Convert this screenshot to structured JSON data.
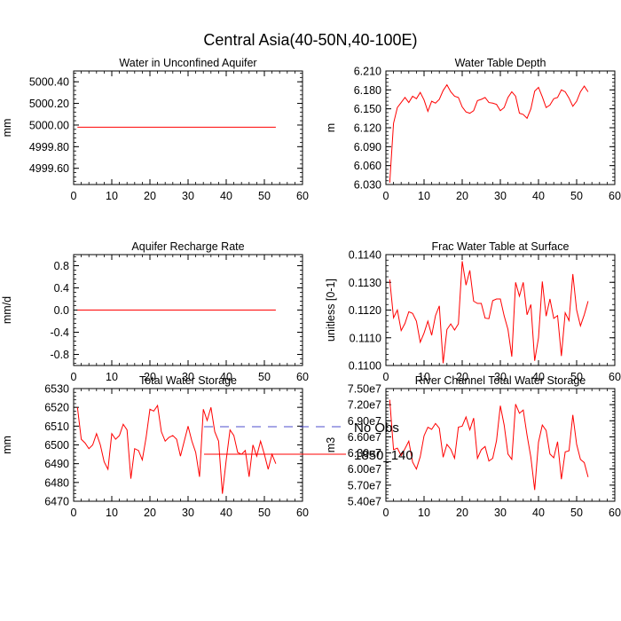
{
  "figure": {
    "title": "Central Asia(40-50N,40-100E)"
  },
  "legend": {
    "items": [
      {
        "label": "No Obs",
        "color": "#4d4dcc",
        "dash": "dashed"
      },
      {
        "label": "1850_140",
        "color": "#ff0000",
        "dash": "solid"
      }
    ]
  },
  "chart_data": [
    {
      "type": "line",
      "title": "Water in Unconfined Aquifer",
      "xlabel": "",
      "ylabel": "mm",
      "xlim": [
        0,
        60
      ],
      "ylim": [
        4999.45,
        5000.5
      ],
      "xticks": [
        0,
        10,
        20,
        30,
        40,
        50,
        60
      ],
      "xtick_labels": [
        "0",
        "10",
        "20",
        "30",
        "40",
        "50",
        "60"
      ],
      "yticks": [
        4999.6,
        4999.8,
        5000.0,
        5000.2,
        5000.4
      ],
      "ytick_labels": [
        "4999.60",
        "4999.80",
        "5000.00",
        "5000.20",
        "5000.40"
      ],
      "x": [
        1,
        53
      ],
      "series": [
        {
          "name": "1850_140",
          "color": "#ff0000",
          "values": [
            4999.98,
            4999.98
          ]
        }
      ]
    },
    {
      "type": "line",
      "title": "Water Table Depth",
      "xlabel": "",
      "ylabel": "m",
      "xlim": [
        0,
        60
      ],
      "ylim": [
        6.03,
        6.21
      ],
      "xticks": [
        0,
        10,
        20,
        30,
        40,
        50,
        60
      ],
      "xtick_labels": [
        "0",
        "10",
        "20",
        "30",
        "40",
        "50",
        "60"
      ],
      "yticks": [
        6.03,
        6.06,
        6.09,
        6.12,
        6.15,
        6.18,
        6.21
      ],
      "ytick_labels": [
        "6.030",
        "6.060",
        "6.090",
        "6.120",
        "6.150",
        "6.180",
        "6.210"
      ],
      "x": [
        1,
        2,
        3,
        4,
        5,
        6,
        7,
        8,
        9,
        10,
        11,
        12,
        13,
        14,
        15,
        16,
        17,
        18,
        19,
        20,
        21,
        22,
        23,
        24,
        25,
        26,
        27,
        28,
        29,
        30,
        31,
        32,
        33,
        34,
        35,
        36,
        37,
        38,
        39,
        40,
        41,
        42,
        43,
        44,
        45,
        46,
        47,
        48,
        49,
        50,
        51,
        52,
        53
      ],
      "series": [
        {
          "name": "1850_140",
          "color": "#ff0000",
          "values": [
            6.033,
            6.127,
            6.152,
            6.16,
            6.168,
            6.16,
            6.17,
            6.166,
            6.176,
            6.164,
            6.146,
            6.162,
            6.159,
            6.165,
            6.179,
            6.188,
            6.177,
            6.17,
            6.168,
            6.153,
            6.145,
            6.143,
            6.147,
            6.163,
            6.165,
            6.168,
            6.16,
            6.159,
            6.157,
            6.147,
            6.152,
            6.168,
            6.177,
            6.17,
            6.143,
            6.141,
            6.135,
            6.15,
            6.178,
            6.184,
            6.169,
            6.152,
            6.156,
            6.166,
            6.168,
            6.18,
            6.177,
            6.167,
            6.154,
            6.162,
            6.177,
            6.186,
            6.177
          ]
        }
      ]
    },
    {
      "type": "line",
      "title": "Aquifer Recharge Rate",
      "xlabel": "",
      "ylabel": "mm/d",
      "xlim": [
        0,
        60
      ],
      "ylim": [
        -1.0,
        1.0
      ],
      "xticks": [
        0,
        10,
        20,
        30,
        40,
        50,
        60
      ],
      "xtick_labels": [
        "0",
        "10",
        "20",
        "30",
        "40",
        "50",
        "60"
      ],
      "yticks": [
        -0.8,
        -0.4,
        0.0,
        0.4,
        0.8
      ],
      "ytick_labels": [
        "-0.8",
        "-0.4",
        "0.0",
        "0.4",
        "0.8"
      ],
      "x": [
        1,
        53
      ],
      "series": [
        {
          "name": "1850_140",
          "color": "#ff0000",
          "values": [
            0.0,
            0.0
          ]
        }
      ]
    },
    {
      "type": "line",
      "title": "Frac Water Table at Surface",
      "xlabel": "",
      "ylabel": "unitless [0-1]",
      "xlim": [
        0,
        60
      ],
      "ylim": [
        0.11,
        0.114
      ],
      "xticks": [
        0,
        10,
        20,
        30,
        40,
        50,
        60
      ],
      "xtick_labels": [
        "0",
        "10",
        "20",
        "30",
        "40",
        "50",
        "60"
      ],
      "yticks": [
        0.11,
        0.111,
        0.112,
        0.113,
        0.114
      ],
      "ytick_labels": [
        "0.1100",
        "0.1110",
        "0.1120",
        "0.1130",
        "0.1140"
      ],
      "x": [
        1,
        2,
        3,
        4,
        5,
        6,
        7,
        8,
        9,
        10,
        11,
        12,
        13,
        14,
        15,
        16,
        17,
        18,
        19,
        20,
        21,
        22,
        23,
        24,
        25,
        26,
        27,
        28,
        29,
        30,
        31,
        32,
        33,
        34,
        35,
        36,
        37,
        38,
        39,
        40,
        41,
        42,
        43,
        44,
        45,
        46,
        47,
        48,
        49,
        50,
        51,
        52,
        53
      ],
      "series": [
        {
          "name": "1850_140",
          "color": "#ff0000",
          "values": [
            0.1131,
            0.11172,
            0.112,
            0.11126,
            0.11152,
            0.11194,
            0.11188,
            0.1116,
            0.11084,
            0.11117,
            0.1116,
            0.11109,
            0.1118,
            0.11215,
            0.11008,
            0.1113,
            0.1115,
            0.11128,
            0.1115,
            0.11376,
            0.1129,
            0.11343,
            0.11232,
            0.11224,
            0.11224,
            0.11171,
            0.11169,
            0.11234,
            0.1124,
            0.1124,
            0.11179,
            0.1113,
            0.11032,
            0.113,
            0.1125,
            0.113,
            0.11183,
            0.1122,
            0.11017,
            0.111,
            0.11303,
            0.11178,
            0.1124,
            0.1117,
            0.1118,
            0.11034,
            0.1119,
            0.11162,
            0.1133,
            0.112,
            0.11143,
            0.11183,
            0.11232
          ]
        }
      ]
    },
    {
      "type": "line",
      "title": "Total Water Storage",
      "xlabel": "",
      "ylabel": "mm",
      "xlim": [
        0,
        60
      ],
      "ylim": [
        6470,
        6530
      ],
      "xticks": [
        0,
        10,
        20,
        30,
        40,
        50,
        60
      ],
      "xtick_labels": [
        "0",
        "10",
        "20",
        "30",
        "40",
        "50",
        "60"
      ],
      "yticks": [
        6470,
        6480,
        6490,
        6500,
        6510,
        6520,
        6530
      ],
      "ytick_labels": [
        "6470",
        "6480",
        "6490",
        "6500",
        "6510",
        "6520",
        "6530"
      ],
      "x": [
        1,
        2,
        3,
        4,
        5,
        6,
        7,
        8,
        9,
        10,
        11,
        12,
        13,
        14,
        15,
        16,
        17,
        18,
        19,
        20,
        21,
        22,
        23,
        24,
        25,
        26,
        27,
        28,
        29,
        30,
        31,
        32,
        33,
        34,
        35,
        36,
        37,
        38,
        39,
        40,
        41,
        42,
        43,
        44,
        45,
        46,
        47,
        48,
        49,
        50,
        51,
        52,
        53
      ],
      "series": [
        {
          "name": "1850_140",
          "color": "#ff0000",
          "values": [
            6520,
            6503,
            6501,
            6498,
            6500,
            6506,
            6500,
            6491,
            6487,
            6506,
            6503,
            6505,
            6511,
            6508,
            6482,
            6498,
            6497,
            6492,
            6504,
            6519,
            6518,
            6521,
            6507,
            6502,
            6504,
            6505,
            6503,
            6494,
            6502,
            6510,
            6502,
            6496,
            6483,
            6519,
            6513,
            6520,
            6507,
            6502,
            6474,
            6492,
            6508,
            6505,
            6496,
            6495,
            6497,
            6483,
            6500,
            6494,
            6502,
            6495,
            6487,
            6495,
            6490
          ]
        }
      ]
    },
    {
      "type": "line",
      "title": "River Channel Total Water Storage",
      "xlabel": "",
      "ylabel": "m3",
      "xlim": [
        0,
        60
      ],
      "ylim": [
        54000000,
        75000000
      ],
      "xticks": [
        0,
        10,
        20,
        30,
        40,
        50,
        60
      ],
      "xtick_labels": [
        "0",
        "10",
        "20",
        "30",
        "40",
        "50",
        "60"
      ],
      "yticks": [
        54000000,
        57000000,
        60000000,
        63000000,
        66000000,
        69000000,
        72000000,
        75000000
      ],
      "ytick_labels": [
        "5.40e7",
        "5.70e7",
        "6.00e7",
        "6.30e7",
        "6.60e7",
        "6.90e7",
        "7.20e7",
        "7.50e7"
      ],
      "x": [
        1,
        2,
        3,
        4,
        5,
        6,
        7,
        8,
        9,
        10,
        11,
        12,
        13,
        14,
        15,
        16,
        17,
        18,
        19,
        20,
        21,
        22,
        23,
        24,
        25,
        26,
        27,
        28,
        29,
        30,
        31,
        32,
        33,
        34,
        35,
        36,
        37,
        38,
        39,
        40,
        41,
        42,
        43,
        44,
        45,
        46,
        47,
        48,
        49,
        50,
        51,
        52,
        53
      ],
      "series": [
        {
          "name": "1850_140",
          "color": "#ff0000",
          "values": [
            72900000,
            63600000,
            63900000,
            62500000,
            63800000,
            65200000,
            61300000,
            60000000,
            62300000,
            66200000,
            67800000,
            67400000,
            68500000,
            67600000,
            62200000,
            64600000,
            63700000,
            62000000,
            67800000,
            68000000,
            69700000,
            67300000,
            69500000,
            62000000,
            63600000,
            64200000,
            61500000,
            62000000,
            65300000,
            71800000,
            68200000,
            62800000,
            61800000,
            72100000,
            70400000,
            71000000,
            66300000,
            62200000,
            56100000,
            65000000,
            68200000,
            67200000,
            62800000,
            62100000,
            65100000,
            58100000,
            63200000,
            63400000,
            70100000,
            64600000,
            61800000,
            61200000,
            58500000
          ]
        }
      ]
    }
  ]
}
